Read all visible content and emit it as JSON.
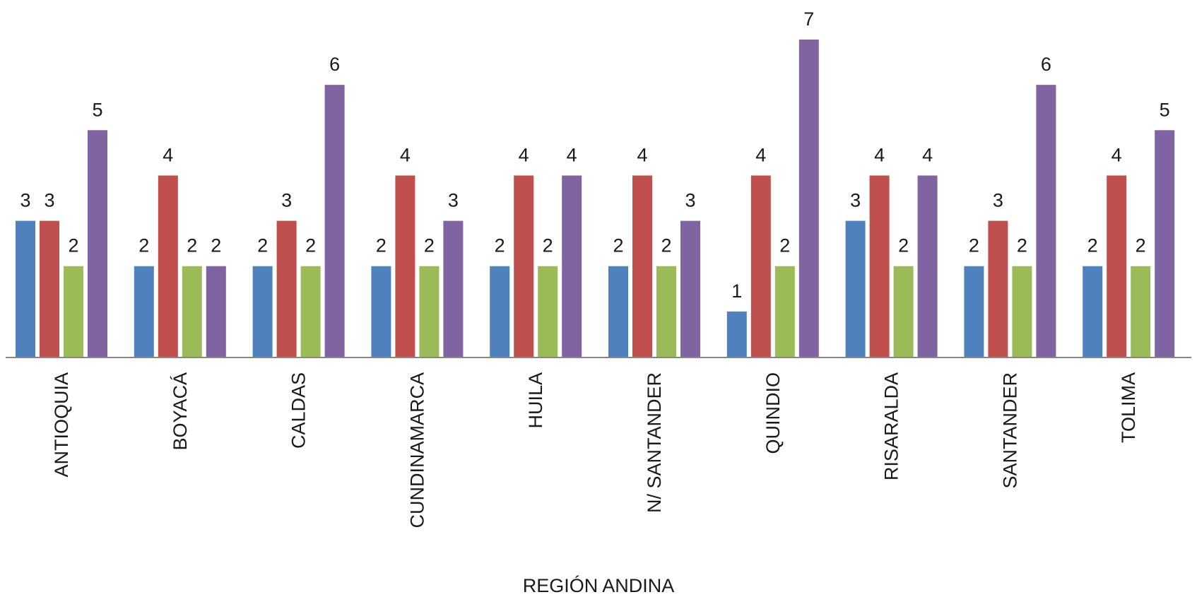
{
  "chart_data": {
    "type": "bar",
    "xlabel": "REGIÓN ANDINA",
    "ylabel": "",
    "ylim": [
      0,
      7
    ],
    "grid": false,
    "legend": "none",
    "categories": [
      "ANTIOQUIA",
      "BOYACÁ",
      "CALDAS",
      "CUNDINAMARCA",
      "HUILA",
      "N/ SANTANDER",
      "QUINDIO",
      "RISARALDA",
      "SANTANDER",
      "TOLIMA"
    ],
    "series": [
      {
        "color": "#4F81BD",
        "values": [
          3,
          2,
          2,
          2,
          2,
          2,
          1,
          3,
          2,
          2
        ]
      },
      {
        "color": "#C0504D",
        "values": [
          3,
          4,
          3,
          4,
          4,
          4,
          4,
          4,
          3,
          4
        ]
      },
      {
        "color": "#9BBB59",
        "values": [
          2,
          2,
          2,
          2,
          2,
          2,
          2,
          2,
          2,
          2
        ]
      },
      {
        "color": "#8064A2",
        "values": [
          5,
          2,
          6,
          3,
          4,
          3,
          7,
          4,
          6,
          5
        ]
      }
    ]
  }
}
